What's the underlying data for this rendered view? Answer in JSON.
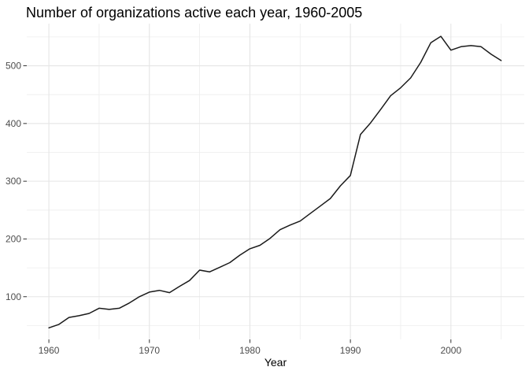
{
  "title": "Number of organizations active each year, 1960-2005",
  "chart_data": {
    "type": "line",
    "title": "Number of organizations active each year, 1960-2005",
    "xlabel": "Year",
    "ylabel": "",
    "x": [
      1960,
      1961,
      1962,
      1963,
      1964,
      1965,
      1966,
      1967,
      1968,
      1969,
      1970,
      1971,
      1972,
      1973,
      1974,
      1975,
      1976,
      1977,
      1978,
      1979,
      1980,
      1981,
      1982,
      1983,
      1984,
      1985,
      1986,
      1987,
      1988,
      1989,
      1990,
      1991,
      1992,
      1993,
      1994,
      1995,
      1996,
      1997,
      1998,
      1999,
      2000,
      2001,
      2002,
      2003,
      2004,
      2005
    ],
    "values": [
      46,
      52,
      64,
      67,
      71,
      80,
      78,
      80,
      89,
      100,
      108,
      111,
      107,
      118,
      128,
      146,
      143,
      151,
      159,
      172,
      183,
      189,
      201,
      216,
      224,
      231,
      244,
      257,
      270,
      292,
      310,
      381,
      401,
      424,
      448,
      462,
      479,
      506,
      540,
      551,
      527,
      533,
      535,
      533,
      520,
      509
    ],
    "x_tick_labels": [
      "1960",
      "1970",
      "1980",
      "1990",
      "2000"
    ],
    "x_ticks": [
      1960,
      1970,
      1980,
      1990,
      2000
    ],
    "x_minor_ticks": [
      1965,
      1975,
      1985,
      1995,
      2005
    ],
    "y_tick_labels": [
      "100",
      "200",
      "300",
      "400",
      "500"
    ],
    "y_ticks": [
      100,
      200,
      300,
      400,
      500
    ],
    "y_minor_ticks": [
      50,
      150,
      250,
      350,
      450,
      550
    ],
    "xlim": [
      1957.8,
      2007.3
    ],
    "ylim": [
      26,
      573
    ],
    "grid": "on",
    "legend": "none",
    "colors": {
      "line": "#1a1a1a",
      "grid_major": "#e5e5e5",
      "grid_minor": "#ededed",
      "axis_text": "#4d4d4d",
      "tick_mark": "#333333",
      "title_text": "#000000",
      "background": "#ffffff"
    }
  }
}
